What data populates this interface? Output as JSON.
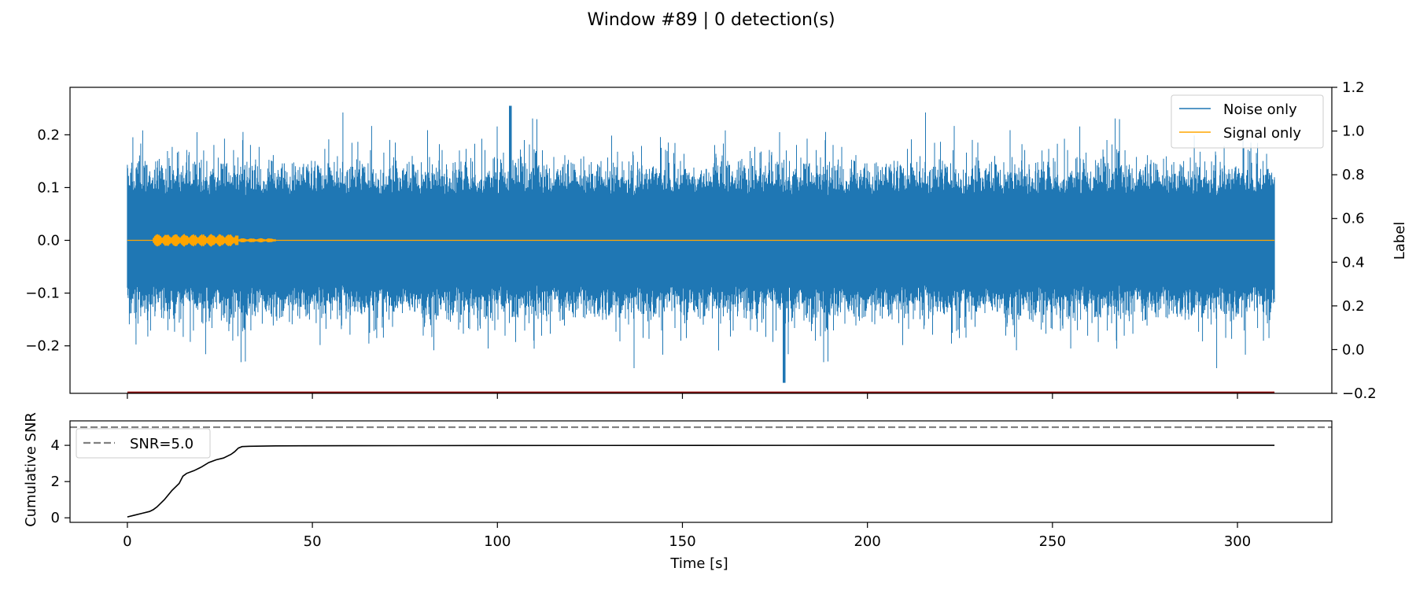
{
  "figure": {
    "title": "Window #89 | 0 detection(s)"
  },
  "chart_data": [
    {
      "type": "line",
      "panel": "top",
      "x_range": [
        -15.5,
        325.5
      ],
      "y_range": [
        -0.29,
        0.29
      ],
      "y_ticks": [
        -0.2,
        -0.1,
        0.0,
        0.1,
        0.2
      ],
      "y_tick_labels": [
        "−0.2",
        "−0.1",
        "0.0",
        "0.1",
        "0.2"
      ],
      "y2_range": [
        -0.2,
        1.2
      ],
      "y2_ticks": [
        -0.2,
        0.0,
        0.2,
        0.4,
        0.6,
        0.8,
        1.0,
        1.2
      ],
      "y2_tick_labels": [
        "−0.2",
        "0.0",
        "0.2",
        "0.4",
        "0.6",
        "0.8",
        "1.0",
        "1.2"
      ],
      "y2label": "Label",
      "x_ticks": [
        0,
        50,
        100,
        150,
        200,
        250,
        300
      ],
      "legend_position": "top-right",
      "series": [
        {
          "name": "Noise only",
          "color": "#1f77b4",
          "x_start": 0,
          "x_end": 310,
          "envelope_typical": 0.12,
          "peak_max": 0.255,
          "peak_min": -0.27
        },
        {
          "name": "Signal only",
          "color": "#ffa500",
          "x_start": 0,
          "x_end": 310,
          "bursts": [
            [
              7,
              30,
              0.012
            ],
            [
              30,
              40,
              0.004
            ]
          ]
        },
        {
          "name": "",
          "axis": "y2",
          "color": "#8b0000",
          "x": [
            0,
            310
          ],
          "y": [
            -0.2,
            -0.2
          ]
        }
      ]
    },
    {
      "type": "line",
      "panel": "bottom",
      "x_range": [
        -15.5,
        325.5
      ],
      "y_range": [
        -0.25,
        5.35
      ],
      "y_ticks": [
        0,
        2,
        4
      ],
      "y_tick_labels": [
        "0",
        "2",
        "4"
      ],
      "x_ticks": [
        0,
        50,
        100,
        150,
        200,
        250,
        300
      ],
      "x_tick_labels": [
        "0",
        "50",
        "100",
        "150",
        "200",
        "250",
        "300"
      ],
      "xlabel": "Time [s]",
      "ylabel": "Cumulative SNR",
      "legend_position": "top-left",
      "threshold": {
        "name": "SNR=5.0",
        "value": 5.0,
        "color": "#808080"
      },
      "series": [
        {
          "name": "",
          "color": "#000000",
          "x": [
            0,
            2,
            4,
            6,
            7,
            8,
            10,
            12,
            14,
            15,
            16,
            18,
            20,
            22,
            24,
            26,
            28,
            29,
            30,
            31,
            33,
            40,
            60,
            100,
            200,
            310
          ],
          "y": [
            0.05,
            0.15,
            0.25,
            0.35,
            0.45,
            0.6,
            1.0,
            1.5,
            1.9,
            2.3,
            2.45,
            2.6,
            2.8,
            3.05,
            3.2,
            3.3,
            3.5,
            3.65,
            3.85,
            3.93,
            3.95,
            3.97,
            3.98,
            3.99,
            4.0,
            4.0
          ]
        }
      ]
    }
  ]
}
